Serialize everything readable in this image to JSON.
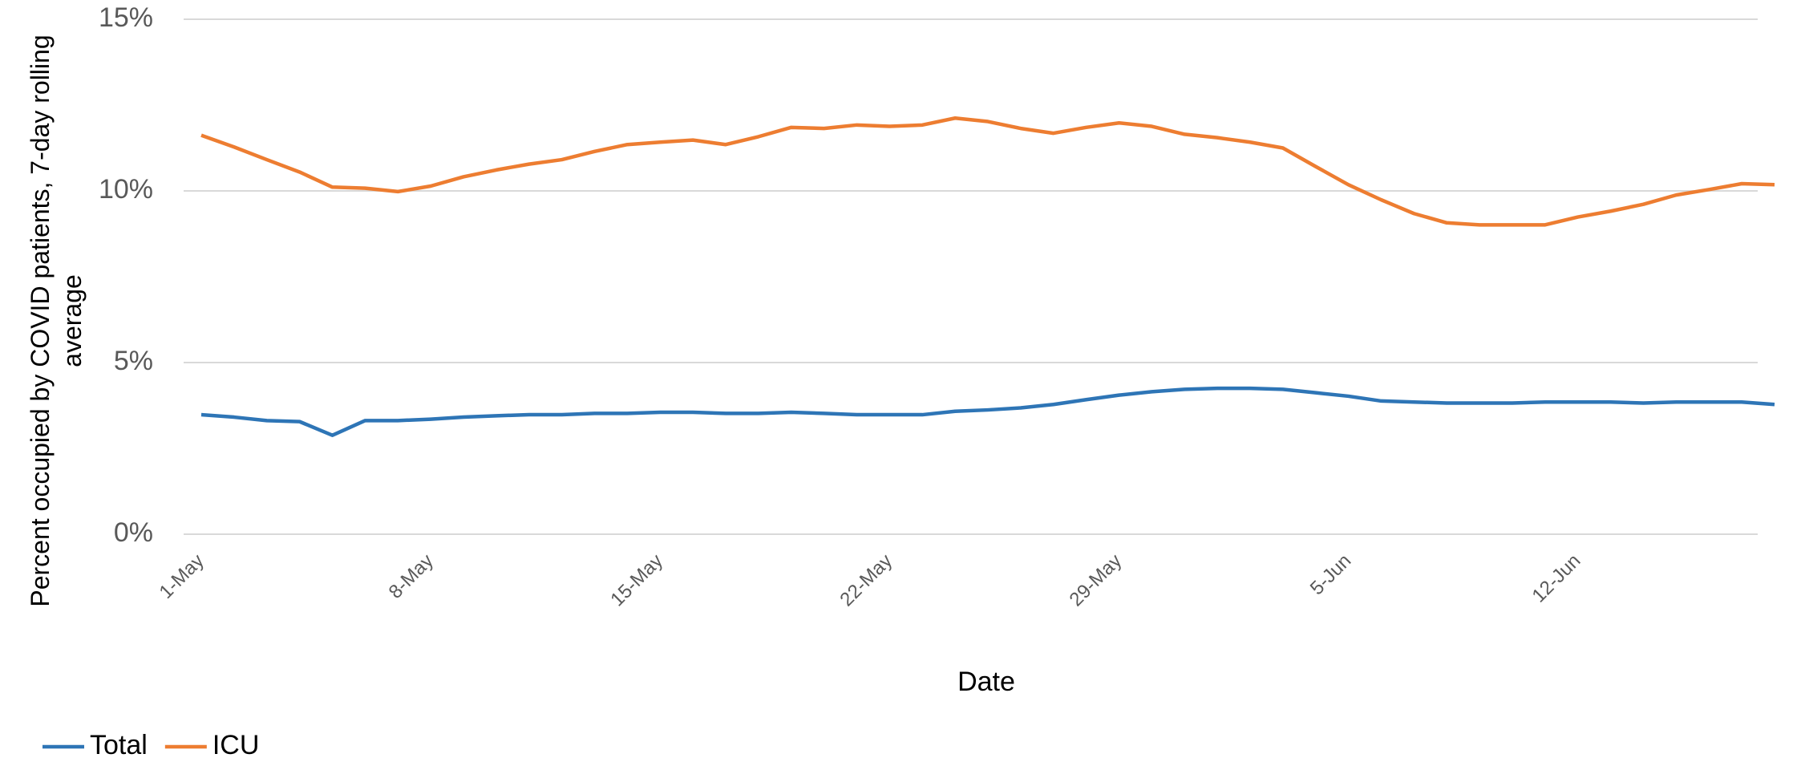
{
  "chart_data": {
    "type": "line",
    "x_label": "Date",
    "y_label": "Percent occupied by COVID patients, 7-day rolling average",
    "categories": [
      "1-May",
      null,
      null,
      null,
      null,
      null,
      null,
      "8-May",
      null,
      null,
      null,
      null,
      null,
      null,
      "15-May",
      null,
      null,
      null,
      null,
      null,
      null,
      "22-May",
      null,
      null,
      null,
      null,
      null,
      null,
      "29-May",
      null,
      null,
      null,
      null,
      null,
      null,
      "5-Jun",
      null,
      null,
      null,
      null,
      null,
      null,
      "12-Jun",
      null,
      null,
      null,
      null,
      null,
      null
    ],
    "series": [
      {
        "name": "Total",
        "color": "#2e75b6",
        "values": [
          3.48,
          3.41,
          3.31,
          3.28,
          2.88,
          3.31,
          3.31,
          3.35,
          3.41,
          3.45,
          3.48,
          3.48,
          3.52,
          3.52,
          3.55,
          3.55,
          3.52,
          3.52,
          3.55,
          3.52,
          3.48,
          3.48,
          3.48,
          3.58,
          3.62,
          3.68,
          3.78,
          3.92,
          4.05,
          4.15,
          4.22,
          4.25,
          4.25,
          4.22,
          4.12,
          4.02,
          3.88,
          3.85,
          3.82,
          3.82,
          3.82,
          3.85,
          3.85,
          3.85,
          3.82,
          3.85,
          3.85,
          3.85,
          3.78
        ]
      },
      {
        "name": "ICU",
        "color": "#ed7d31",
        "values": [
          11.62,
          11.28,
          10.91,
          10.55,
          10.11,
          10.08,
          9.98,
          10.14,
          10.41,
          10.61,
          10.78,
          10.91,
          11.15,
          11.35,
          11.42,
          11.48,
          11.35,
          11.58,
          11.85,
          11.82,
          11.92,
          11.88,
          11.92,
          12.12,
          12.02,
          11.82,
          11.68,
          11.85,
          11.98,
          11.88,
          11.65,
          11.55,
          11.42,
          11.25,
          10.71,
          10.18,
          9.74,
          9.34,
          9.07,
          9.01,
          9.01,
          9.01,
          9.24,
          9.41,
          9.61,
          9.88,
          10.04,
          10.21,
          10.18
        ]
      }
    ],
    "ylim": [
      0,
      15
    ],
    "yticks": [
      {
        "value": 0,
        "label": "0%"
      },
      {
        "value": 5,
        "label": "5%"
      },
      {
        "value": 10,
        "label": "10%"
      },
      {
        "value": 15,
        "label": "15%"
      }
    ],
    "grid": true,
    "legend": "bottom-left"
  }
}
